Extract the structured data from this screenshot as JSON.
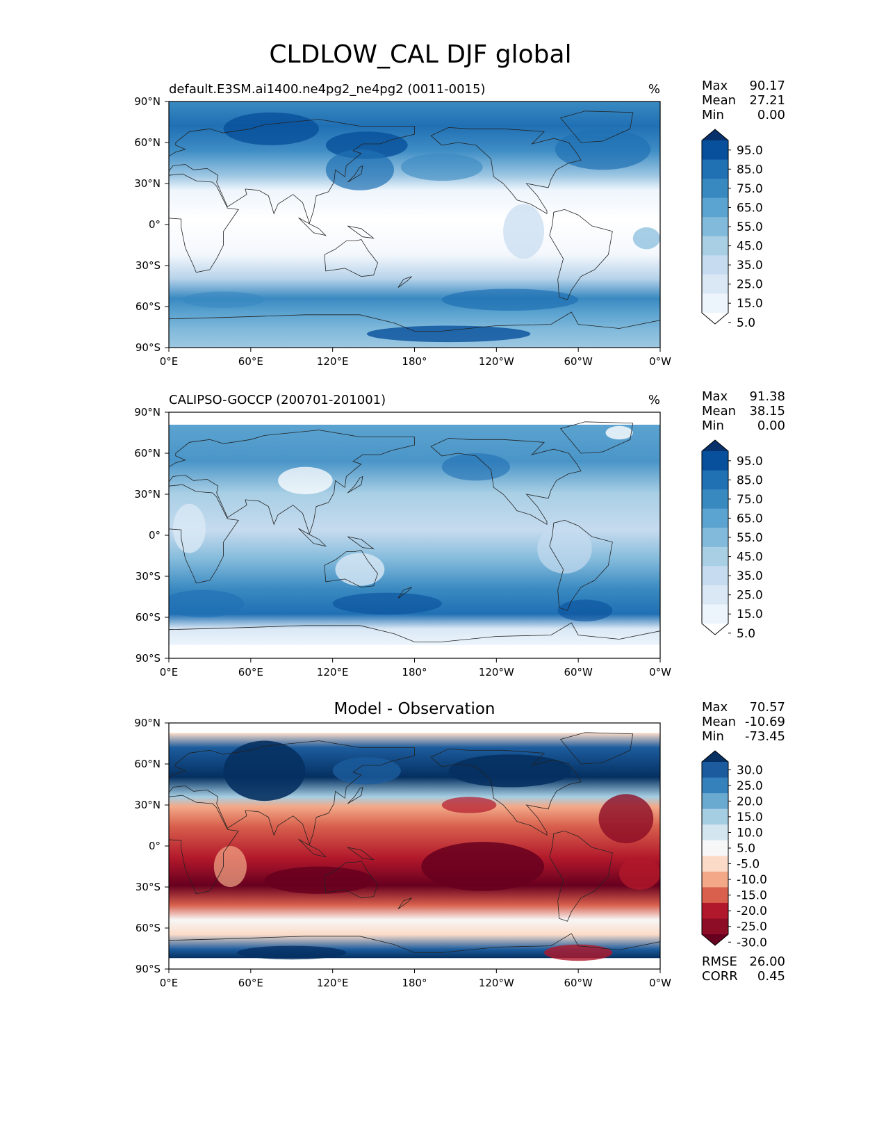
{
  "figure": {
    "title": "CLDLOW_CAL DJF global"
  },
  "axes": {
    "xticks": [
      "0°E",
      "60°E",
      "120°E",
      "180°",
      "120°W",
      "60°W",
      "0°W"
    ],
    "yticks": [
      "90°N",
      "60°N",
      "30°N",
      "0°",
      "30°S",
      "60°S",
      "90°S"
    ]
  },
  "panels": [
    {
      "title": "default.E3SM.ai1400.ne4pg2_ne4pg2 (0011-0015)",
      "units": "%",
      "stats": [
        {
          "label": "Max",
          "value": "90.17"
        },
        {
          "label": "Mean",
          "value": "27.21"
        },
        {
          "label": "Min",
          "value": "0.00"
        }
      ],
      "colorbar": {
        "levels": [
          "95.0",
          "85.0",
          "75.0",
          "65.0",
          "55.0",
          "45.0",
          "35.0",
          "25.0",
          "15.0",
          "5.0"
        ],
        "colors": [
          "#08306b",
          "#08509b",
          "#2070b4",
          "#3989c1",
          "#5ba3d0",
          "#82badb",
          "#a9cfe5",
          "#c6dbef",
          "#dae8f5",
          "#ecf4fc",
          "#ffffff"
        ]
      }
    },
    {
      "title": "CALIPSO-GOCCP (200701-201001)",
      "units": "%",
      "stats": [
        {
          "label": "Max",
          "value": "91.38"
        },
        {
          "label": "Mean",
          "value": "38.15"
        },
        {
          "label": "Min",
          "value": "0.00"
        }
      ],
      "colorbar": {
        "levels": [
          "95.0",
          "85.0",
          "75.0",
          "65.0",
          "55.0",
          "45.0",
          "35.0",
          "25.0",
          "15.0",
          "5.0"
        ],
        "colors": [
          "#08306b",
          "#08509b",
          "#2070b4",
          "#3989c1",
          "#5ba3d0",
          "#82badb",
          "#a9cfe5",
          "#c6dbef",
          "#dae8f5",
          "#ecf4fc",
          "#ffffff"
        ]
      }
    },
    {
      "title": "Model - Observation",
      "units": "",
      "stats": [
        {
          "label": "Max",
          "value": "70.57"
        },
        {
          "label": "Mean",
          "value": "-10.69"
        },
        {
          "label": "Min",
          "value": "-73.45"
        }
      ],
      "extra_stats": [
        {
          "label": "RMSE",
          "value": "26.00"
        },
        {
          "label": "CORR",
          "value": "0.45"
        }
      ],
      "colorbar": {
        "levels": [
          "30.0",
          "25.0",
          "20.0",
          "15.0",
          "10.0",
          "5.0",
          "-5.0",
          "-10.0",
          "-15.0",
          "-20.0",
          "-25.0",
          "-30.0"
        ],
        "colors": [
          "#053061",
          "#1c5c9e",
          "#3581bb",
          "#6aa9d0",
          "#a6cee3",
          "#d3e6f0",
          "#f7f7f7",
          "#fbdbc8",
          "#f3a988",
          "#d8604d",
          "#b2182b",
          "#8c0d25",
          "#67001f"
        ]
      }
    }
  ],
  "chart_data": [
    {
      "type": "heatmap",
      "title": "default.E3SM.ai1400.ne4pg2_ne4pg2 (0011-0015)",
      "variable": "CLDLOW_CAL",
      "season": "DJF",
      "units": "%",
      "x_range": [
        0,
        360
      ],
      "y_range": [
        -90,
        90
      ],
      "zonal_mean_profile": {
        "lat": [
          90,
          75,
          60,
          45,
          30,
          15,
          0,
          -15,
          -30,
          -45,
          -55,
          -65,
          -75,
          -90
        ],
        "value": [
          55,
          60,
          62,
          50,
          20,
          8,
          8,
          8,
          15,
          45,
          60,
          50,
          40,
          30
        ]
      }
    },
    {
      "type": "heatmap",
      "title": "CALIPSO-GOCCP (200701-201001)",
      "variable": "CLDLOW_CAL",
      "season": "DJF",
      "units": "%",
      "x_range": [
        0,
        360
      ],
      "y_range": [
        -90,
        90
      ],
      "zonal_mean_profile": {
        "lat": [
          82,
          75,
          60,
          45,
          30,
          15,
          0,
          -15,
          -30,
          -45,
          -55,
          -65,
          -75,
          -82
        ],
        "value": [
          45,
          50,
          52,
          45,
          35,
          30,
          32,
          40,
          45,
          55,
          60,
          55,
          20,
          10
        ]
      }
    },
    {
      "type": "heatmap",
      "title": "Model - Observation",
      "units": "%",
      "x_range": [
        0,
        360
      ],
      "y_range": [
        -90,
        90
      ],
      "zonal_mean_profile": {
        "lat": [
          82,
          75,
          60,
          45,
          30,
          15,
          0,
          -15,
          -30,
          -45,
          -55,
          -65,
          -75,
          -82
        ],
        "value": [
          20,
          25,
          30,
          10,
          -15,
          -20,
          -22,
          -30,
          -30,
          -10,
          0,
          -5,
          15,
          20
        ]
      }
    }
  ]
}
